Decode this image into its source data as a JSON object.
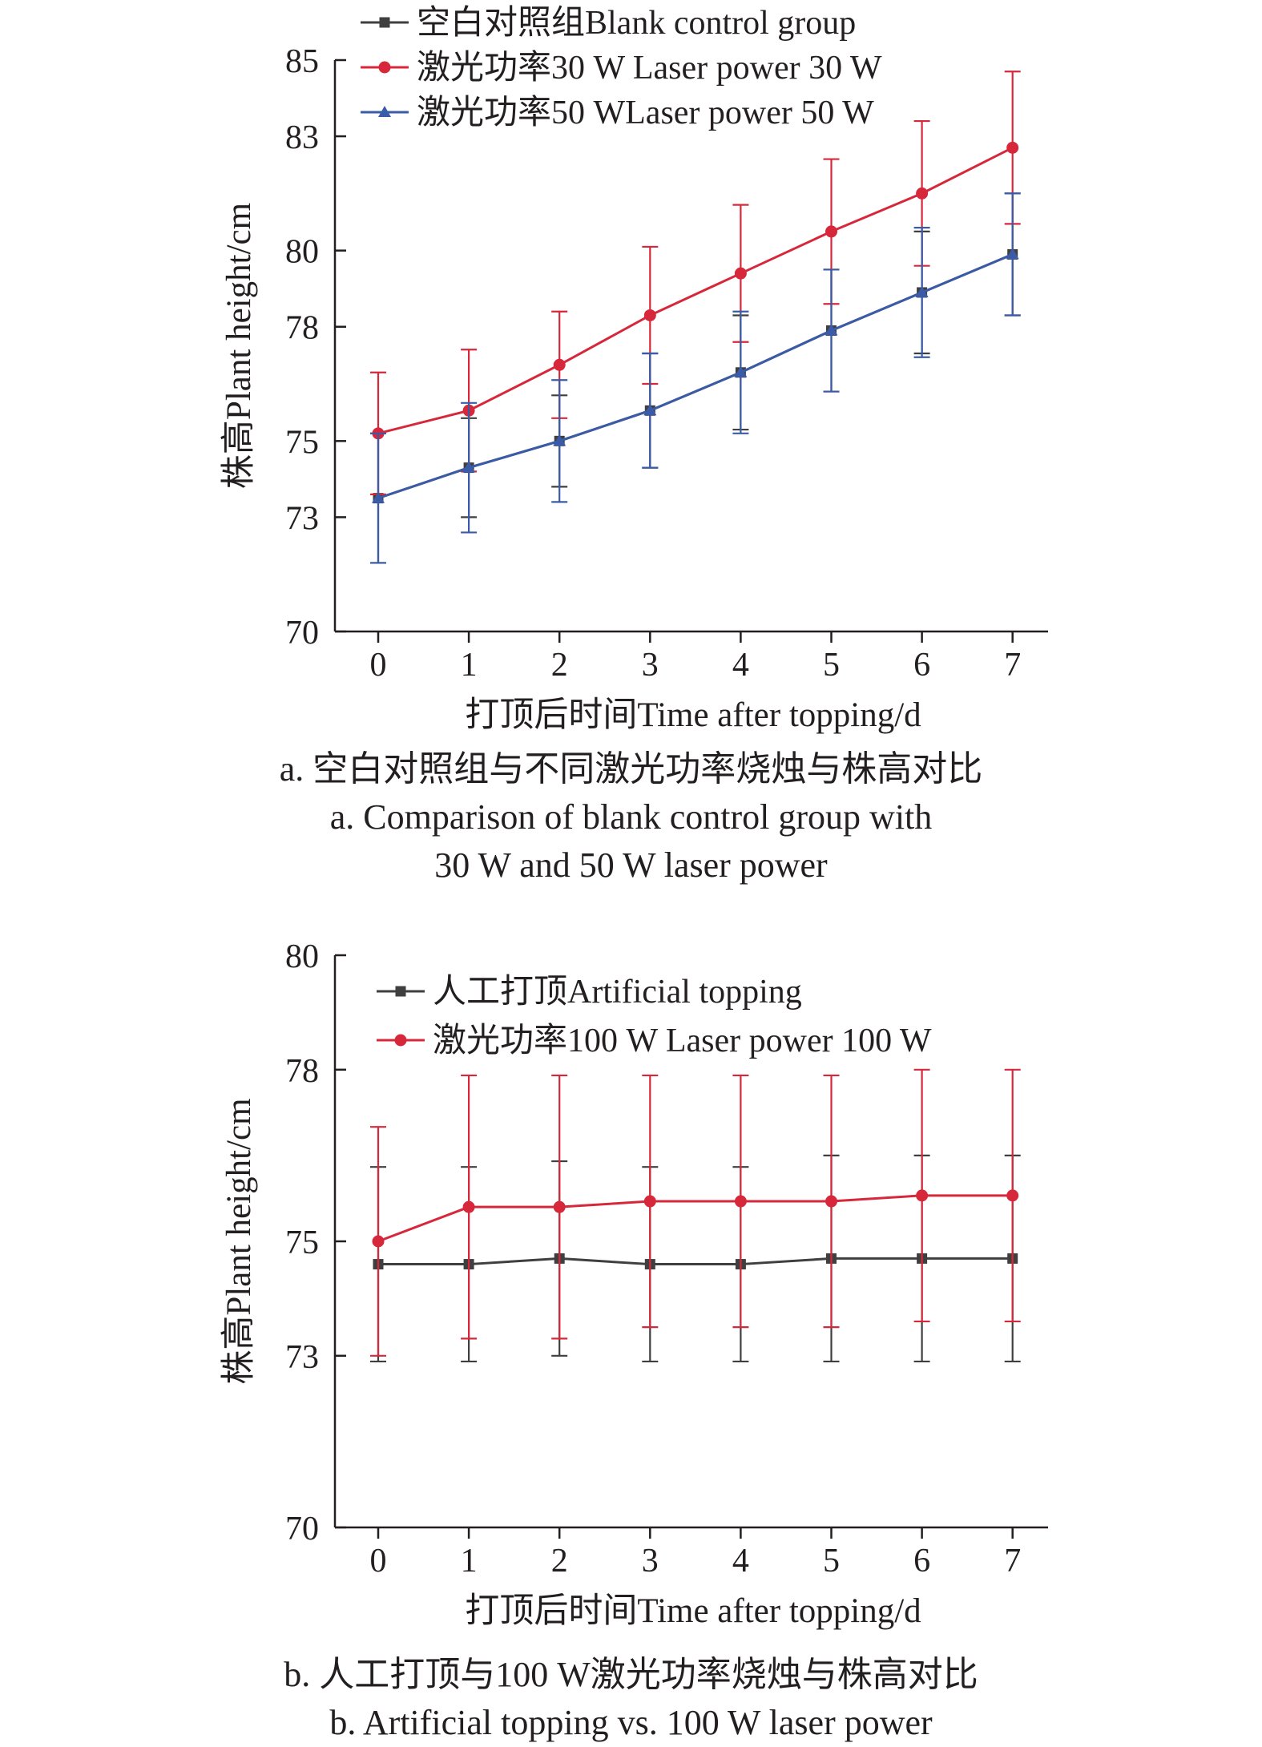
{
  "chart_data": [
    {
      "id": "a",
      "type": "line",
      "x": [
        0,
        1,
        2,
        3,
        4,
        5,
        6,
        7
      ],
      "xlabel": "打顶后时间Time after topping/d",
      "ylabel": "株高Plant height/cm",
      "ylim": [
        70,
        85
      ],
      "yticks": [
        70,
        73,
        75,
        78,
        80,
        83,
        85
      ],
      "grid": false,
      "legend_position": "top",
      "series": [
        {
          "name": "空白对照组Blank control group",
          "marker": "square",
          "color": "#3f3f3f",
          "values": [
            73.5,
            74.3,
            75.0,
            75.8,
            76.8,
            77.9,
            78.9,
            79.9
          ],
          "errors": [
            1.7,
            1.3,
            1.2,
            1.5,
            1.5,
            1.6,
            1.6,
            1.6
          ]
        },
        {
          "name": "激光功率30 W Laser power 30 W",
          "marker": "circle",
          "color": "#d7283b",
          "values": [
            75.2,
            75.8,
            77.0,
            78.3,
            79.4,
            80.5,
            81.5,
            82.7
          ],
          "errors": [
            1.6,
            1.6,
            1.4,
            1.8,
            1.8,
            1.9,
            1.9,
            2.0
          ]
        },
        {
          "name": "激光功率50 WLaser power 50 W",
          "marker": "triangle",
          "color": "#3a5ba8",
          "values": [
            73.5,
            74.3,
            75.0,
            75.8,
            76.8,
            77.9,
            78.9,
            79.9
          ],
          "errors": [
            1.7,
            1.7,
            1.6,
            1.5,
            1.6,
            1.6,
            1.7,
            1.6
          ]
        }
      ]
    },
    {
      "id": "b",
      "type": "line",
      "x": [
        0,
        1,
        2,
        3,
        4,
        5,
        6,
        7
      ],
      "xlabel": "打顶后时间Time after topping/d",
      "ylabel": "株高Plant height/cm",
      "ylim": [
        70,
        80
      ],
      "yticks": [
        70,
        73,
        75,
        78,
        80
      ],
      "grid": false,
      "legend_position": "top",
      "series": [
        {
          "name": "人工打顶Artificial topping",
          "marker": "square",
          "color": "#3f3f3f",
          "values": [
            74.6,
            74.6,
            74.7,
            74.6,
            74.6,
            74.7,
            74.7,
            74.7
          ],
          "errors": [
            1.7,
            1.7,
            1.7,
            1.7,
            1.7,
            1.8,
            1.8,
            1.8
          ]
        },
        {
          "name": "激光功率100 W Laser power 100 W",
          "marker": "circle",
          "color": "#d7283b",
          "values": [
            75.0,
            75.6,
            75.6,
            75.7,
            75.7,
            75.7,
            75.8,
            75.8
          ],
          "errors": [
            2.0,
            2.3,
            2.3,
            2.2,
            2.2,
            2.2,
            2.2,
            2.2
          ]
        }
      ]
    }
  ],
  "captions": {
    "a_cn": "a. 空白对照组与不同激光功率烧烛与株高对比",
    "a_en_1": "a. Comparison of blank control group with",
    "a_en_2": "30 W and 50 W laser power",
    "b_cn": "b. 人工打顶与100 W激光功率烧烛与株高对比",
    "b_en": "b. Artificial topping vs. 100 W laser power"
  }
}
